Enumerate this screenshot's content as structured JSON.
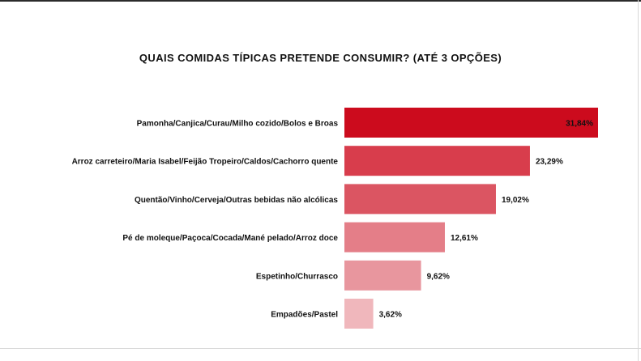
{
  "chart_data": {
    "type": "bar",
    "orientation": "horizontal",
    "title": "QUAIS COMIDAS TÍPICAS PRETENDE CONSUMIR? (ATÉ 3 OPÇÕES)",
    "xlabel": "",
    "ylabel": "",
    "xlim": [
      0,
      31.84
    ],
    "grid": false,
    "categories": [
      "Pamonha/Canjica/Curau/Milho cozido/Bolos e Broas",
      "Arroz carreteiro/Maria Isabel/Feijão Tropeiro/Caldos/Cachorro quente",
      "Quentão/Vinho/Cerveja/Outras bebidas não alcólicas",
      "Pé de moleque/Paçoca/Cocada/Mané pelado/Arroz doce",
      "Espetinho/Churrasco",
      "Empadões/Pastel"
    ],
    "values": [
      31.84,
      23.29,
      19.02,
      12.61,
      9.62,
      3.62
    ],
    "value_labels": [
      "31,84%",
      "23,29%",
      "19,02%",
      "12,61%",
      "9,62%",
      "3,62%"
    ],
    "colors": [
      "#cc0b1d",
      "#d83d4c",
      "#db5562",
      "#e47e88",
      "#e8969e",
      "#f0b7bc"
    ]
  }
}
